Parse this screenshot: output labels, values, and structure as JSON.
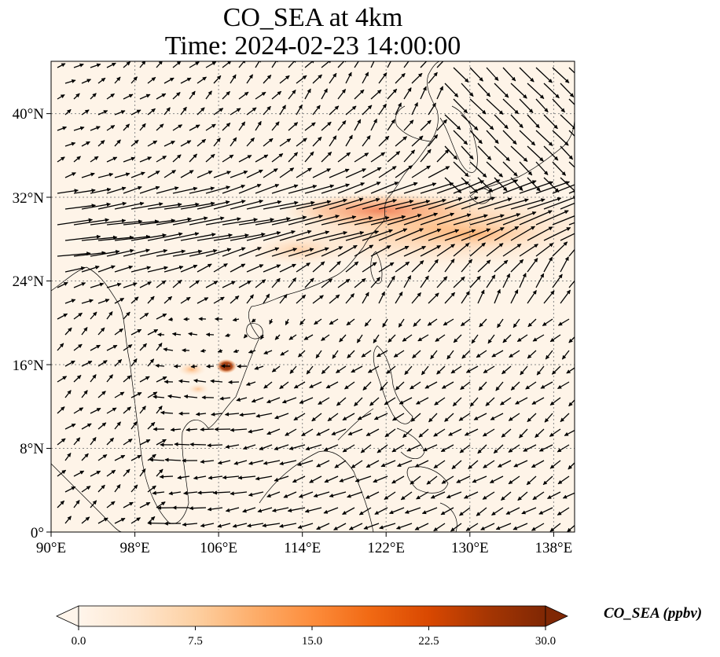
{
  "title": {
    "line1": "CO_SEA at 4km",
    "line2": "Time: 2024-02-23 14:00:00"
  },
  "map": {
    "lon_range": [
      90,
      140
    ],
    "lat_range": [
      0,
      45
    ],
    "x_ticks": [
      {
        "value": 90,
        "label": "90°E"
      },
      {
        "value": 98,
        "label": "98°E"
      },
      {
        "value": 106,
        "label": "106°E"
      },
      {
        "value": 114,
        "label": "114°E"
      },
      {
        "value": 122,
        "label": "122°E"
      },
      {
        "value": 130,
        "label": "130°E"
      },
      {
        "value": 138,
        "label": "138°E"
      }
    ],
    "y_ticks": [
      {
        "value": 0,
        "label": "0°"
      },
      {
        "value": 8,
        "label": "8°N"
      },
      {
        "value": 16,
        "label": "16°N"
      },
      {
        "value": 24,
        "label": "24°N"
      },
      {
        "value": 32,
        "label": "32°N"
      },
      {
        "value": 40,
        "label": "40°N"
      }
    ],
    "gridlines": "dotted",
    "field": "CO_SEA",
    "features": [
      "coastlines",
      "wind vectors",
      "CO concentration shading"
    ]
  },
  "colorbar": {
    "label": "CO_SEA (ppbv)",
    "min": 0.0,
    "max": 30.0,
    "extend": "both",
    "colormap": [
      "#fff5eb",
      "#fee6ce",
      "#fdd0a2",
      "#fdae6b",
      "#fd8d3c",
      "#f16913",
      "#d94801",
      "#a63603",
      "#7f2704"
    ],
    "ticks": [
      {
        "value": 0.0,
        "label": "0.0"
      },
      {
        "value": 7.5,
        "label": "7.5"
      },
      {
        "value": 15.0,
        "label": "15.0"
      },
      {
        "value": 22.5,
        "label": "22.5"
      },
      {
        "value": 30.0,
        "label": "30.0"
      }
    ]
  }
}
